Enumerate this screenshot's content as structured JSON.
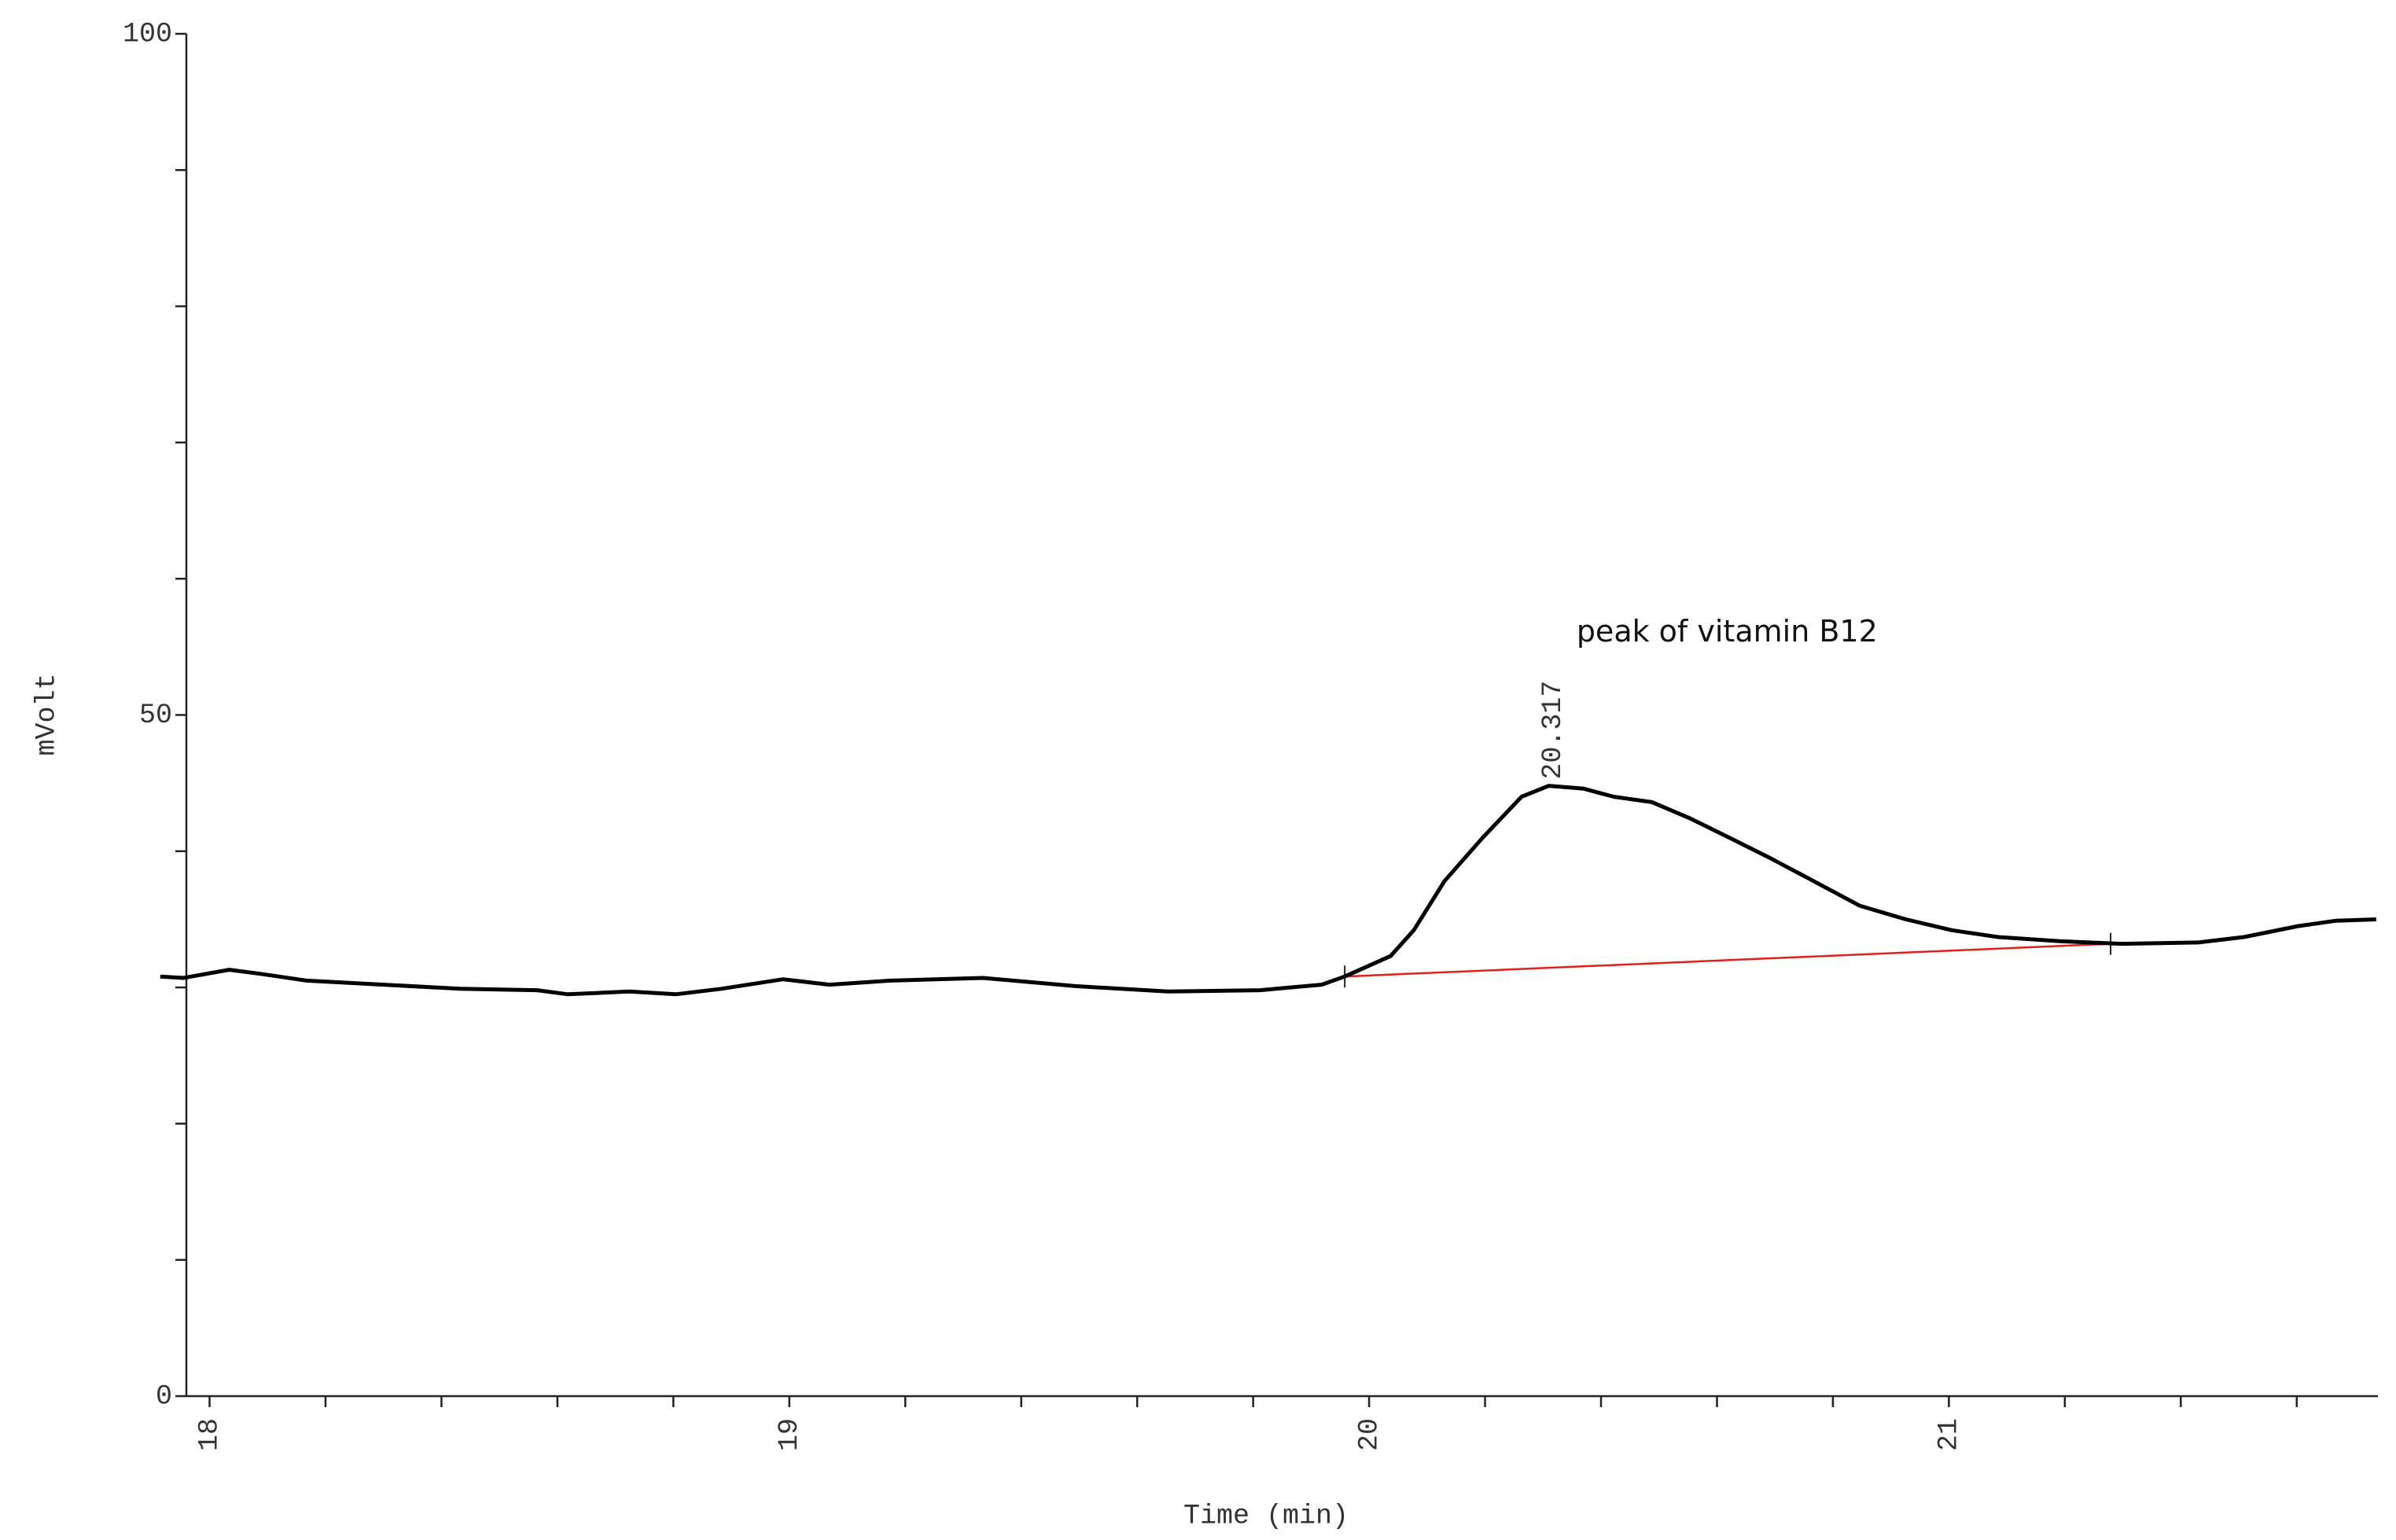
{
  "chart_data": {
    "type": "line",
    "xlabel": "Time (min)",
    "ylabel": "mVolt",
    "xlim": [
      17.96,
      21.74
    ],
    "ylim": [
      0,
      100
    ],
    "xticks": [
      18,
      19,
      20,
      21
    ],
    "yticks": [
      0,
      50,
      100
    ],
    "xminorticks": [
      18.2,
      18.4,
      18.6,
      18.8,
      19.2,
      19.4,
      19.6,
      19.8,
      20.2,
      20.4,
      20.6,
      20.8,
      21.2,
      21.4,
      21.6
    ],
    "yminorticks": [
      10,
      20,
      30,
      40,
      60,
      70,
      80,
      90
    ],
    "grid": false,
    "series": [
      {
        "color": "#000000",
        "x": [
          17.915,
          17.955,
          18.034,
          18.088,
          18.167,
          18.3,
          18.432,
          18.565,
          18.618,
          18.724,
          18.804,
          18.883,
          18.989,
          19.069,
          19.175,
          19.334,
          19.493,
          19.653,
          19.812,
          19.918,
          19.958,
          20.037,
          20.077,
          20.13,
          20.196,
          20.263,
          20.31,
          20.369,
          20.422,
          20.488,
          20.554,
          20.621,
          20.687,
          20.767,
          20.846,
          20.926,
          21.005,
          21.085,
          21.191,
          21.297,
          21.43,
          21.509,
          21.602,
          21.668,
          21.737
        ],
        "values": [
          30.8,
          30.7,
          31.3,
          31.0,
          30.5,
          30.2,
          29.9,
          29.8,
          29.5,
          29.7,
          29.5,
          29.9,
          30.6,
          30.2,
          30.5,
          30.7,
          30.1,
          29.7,
          29.8,
          30.2,
          30.8,
          32.3,
          34.2,
          37.8,
          41.0,
          44.0,
          44.8,
          44.6,
          44.0,
          43.6,
          42.4,
          41.0,
          39.6,
          37.8,
          36.0,
          35.0,
          34.2,
          33.7,
          33.4,
          33.2,
          33.3,
          33.7,
          34.5,
          34.9,
          35.0
        ]
      }
    ],
    "baseline": {
      "color": "#e0201b",
      "x": [
        19.958,
        21.279
      ],
      "values": [
        30.8,
        33.2
      ]
    },
    "peak": {
      "label": "peak of vitamin B12",
      "retention_time": 20.317,
      "height": 44.8
    }
  }
}
